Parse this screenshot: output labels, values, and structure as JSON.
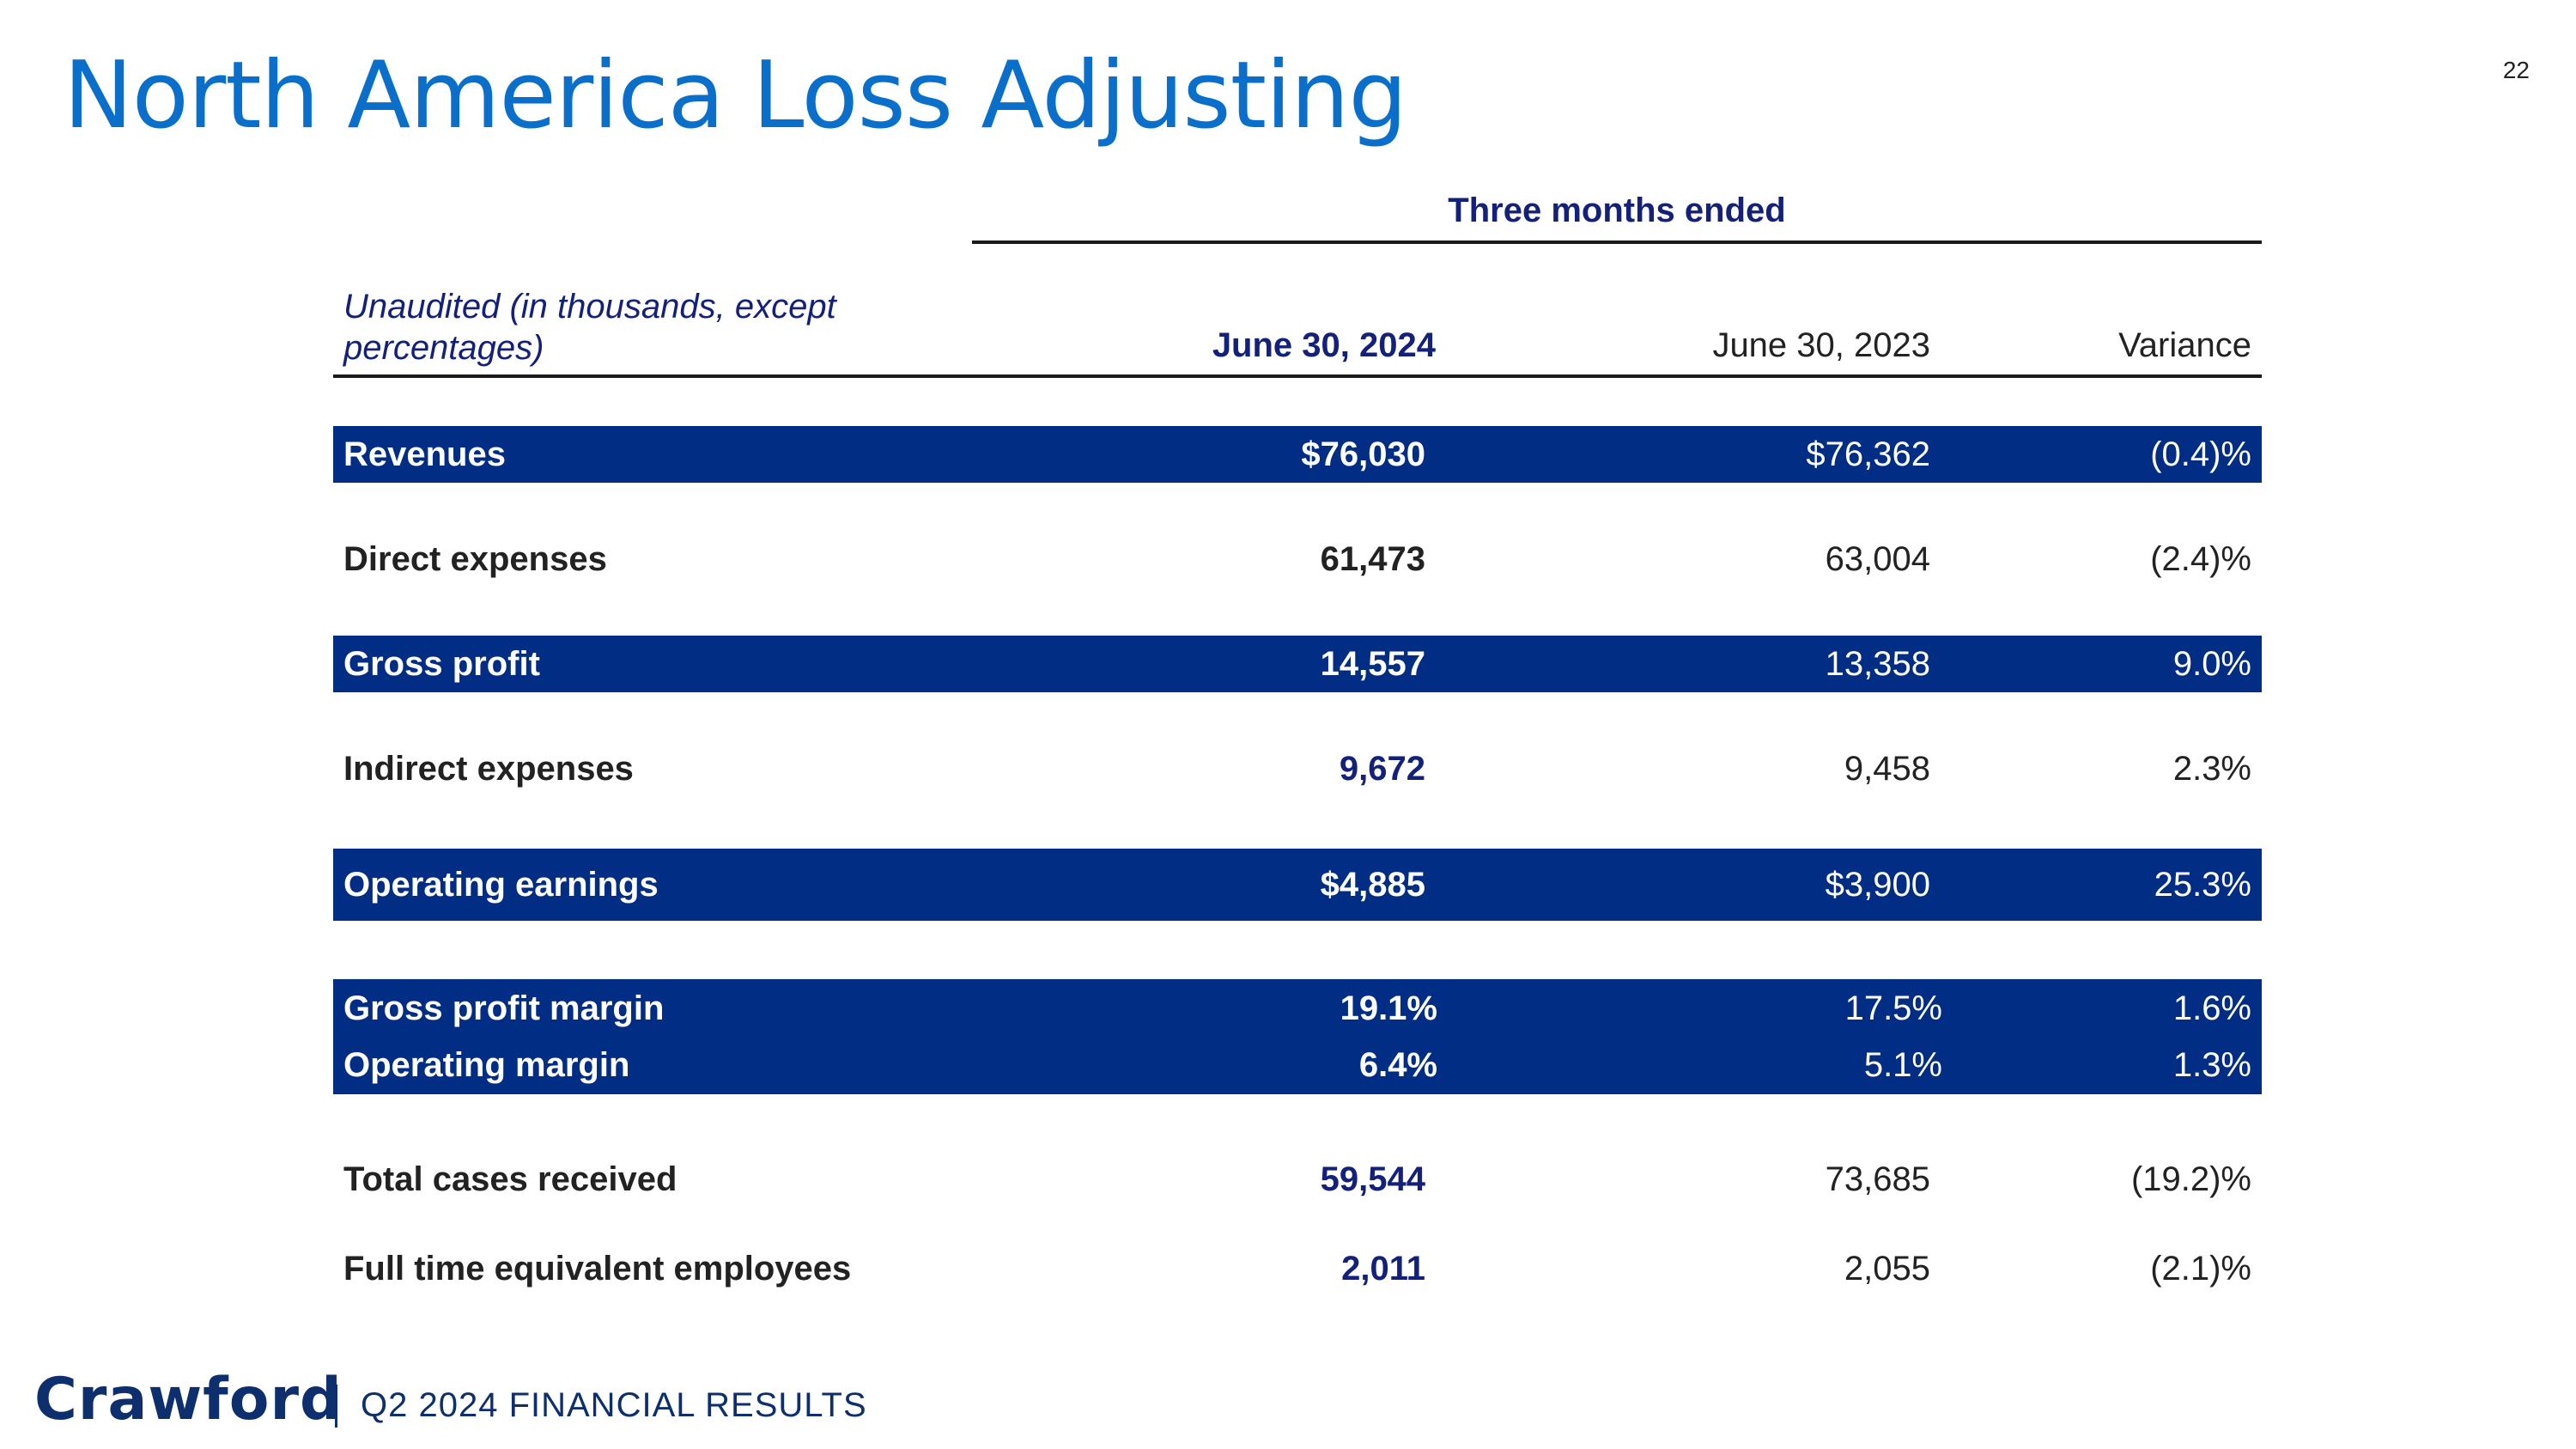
{
  "title": "North America Loss Adjusting",
  "page_number": "22",
  "table": {
    "period_header": "Three months ended",
    "units_label": "Unaudited (in thousands, except percentages)",
    "col_2024": "June 30, 2024",
    "col_2023": "June 30, 2023",
    "col_variance": "Variance",
    "rows": {
      "revenues": {
        "label": "Revenues",
        "v2024": "$76,030",
        "v2023": "$76,362",
        "variance": "(0.4)%"
      },
      "direct_expenses": {
        "label": "Direct expenses",
        "v2024": "61,473",
        "v2023": "63,004",
        "variance": "(2.4)%"
      },
      "gross_profit": {
        "label": "Gross profit",
        "v2024": "14,557",
        "v2023": "13,358",
        "variance": "9.0%"
      },
      "indirect_expenses": {
        "label": "Indirect expenses",
        "v2024": "9,672",
        "v2023": "9,458",
        "variance": "2.3%"
      },
      "operating_earnings": {
        "label": "Operating earnings",
        "v2024": "$4,885",
        "v2023": "$3,900",
        "variance": "25.3%"
      },
      "gross_profit_margin": {
        "label": "Gross profit margin",
        "v2024": "19.1%",
        "v2023": "17.5%",
        "variance": "1.6%"
      },
      "operating_margin": {
        "label": "Operating margin",
        "v2024": "6.4%",
        "v2023": "5.1%",
        "variance": "1.3%"
      },
      "total_cases": {
        "label": "Total cases received",
        "v2024": "59,544",
        "v2023": "73,685",
        "variance": "(19.2)%"
      },
      "fte": {
        "label": "Full time equivalent employees",
        "v2024": "2,011",
        "v2023": "2,055",
        "variance": "(2.1)%"
      }
    }
  },
  "footer": {
    "logo": "Crawford",
    "text": "Q2 2024 FINANCIAL RESULTS"
  },
  "colors": {
    "title": "#0a6fca",
    "band": "#022d84",
    "accent_text": "#13217a"
  }
}
